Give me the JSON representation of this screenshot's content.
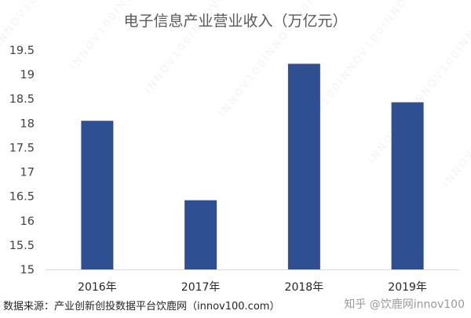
{
  "chart_data": {
    "type": "bar",
    "title": "电子信息产业营业收入（万亿元）",
    "categories": [
      "2016年",
      "2017年",
      "2018年",
      "2019年"
    ],
    "series": [
      {
        "values": [
          18.05,
          16.42,
          19.22,
          18.43
        ]
      }
    ],
    "ylim": [
      15,
      19.5
    ],
    "yticks": [
      "15",
      "15.5",
      "16",
      "16.5",
      "17",
      "17.5",
      "18",
      "18.5",
      "19",
      "19.5"
    ],
    "ytick_values": [
      15,
      15.5,
      16,
      16.5,
      17,
      17.5,
      18,
      18.5,
      19,
      19.5
    ],
    "grid": false,
    "bar_color": "#2f4f93",
    "watermark": "INNOV100"
  },
  "footer": {
    "source": "数据来源：产业创新创投数据平台饮鹿网（innov100.com）",
    "credit": "知乎 @饮鹿网innov100"
  }
}
